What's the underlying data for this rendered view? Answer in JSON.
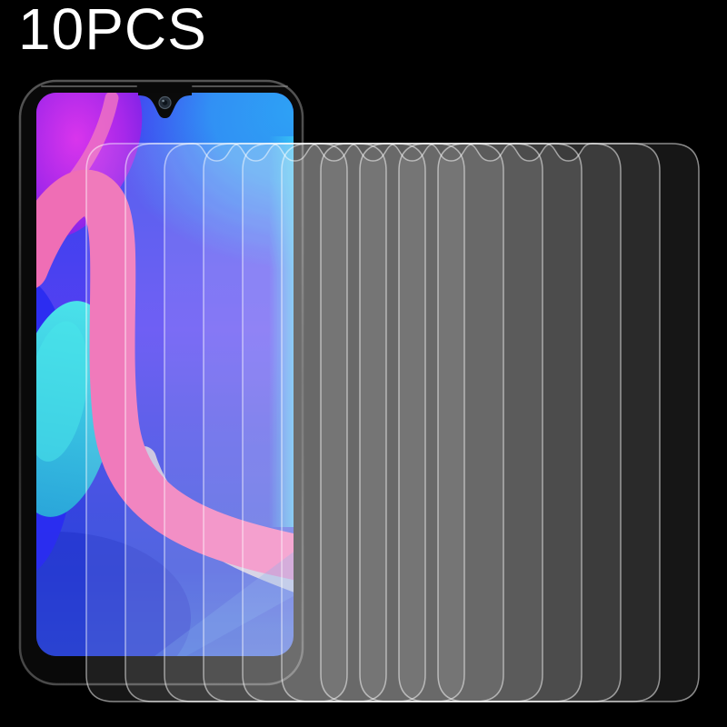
{
  "product_image": {
    "quantity_label": "10PCS",
    "pieces_count": 10,
    "subject": "smartphone with fanned stack of clear tempered-glass screen protectors"
  },
  "colors": {
    "background": "#000000",
    "label_text": "#ffffff",
    "protector_fill": "rgba(255,255,255,0.085)",
    "protector_outline": "rgba(255,255,255,0.52)",
    "phone_frame": "#090909",
    "wallpaper_violet": "#4a2af0",
    "wallpaper_magenta": "#c935e2",
    "wallpaper_pink": "#ef6eb5",
    "wallpaper_azure": "#2da2f5",
    "wallpaper_teal": "#3cd6e6",
    "wallpaper_royal_blue": "#2a2cf0",
    "wallpaper_light_band": "#d9cfda"
  },
  "icons": {
    "front_camera": "front-camera-icon",
    "notch": "waterdrop-notch"
  }
}
